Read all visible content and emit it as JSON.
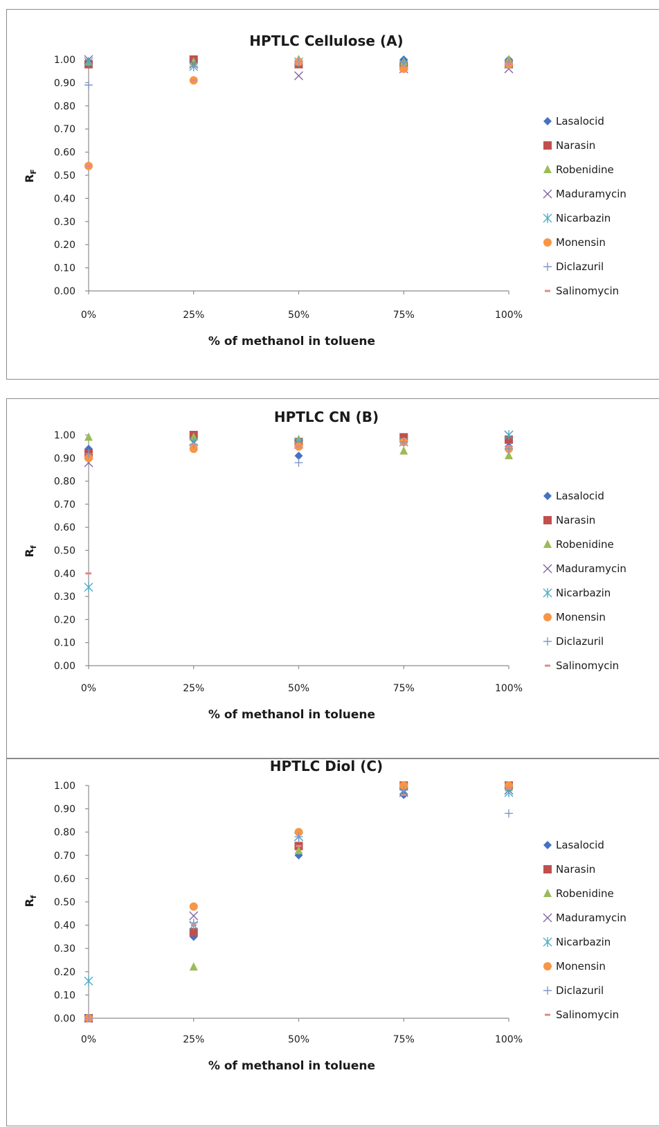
{
  "colors": {
    "Lasalocid": "#4472c4",
    "Narasin": "#c0504d",
    "Robenidine": "#9bbb59",
    "Maduramycin": "#8064a2",
    "Nicarbazin": "#4bacc6",
    "Monensin": "#f79646",
    "Diclazuril": "#7f97c9",
    "Salinomycin": "#e08a88"
  },
  "marker_shapes": {
    "Lasalocid": "diamond",
    "Narasin": "square",
    "Robenidine": "triangle",
    "Maduramycin": "x",
    "Nicarbazin": "asterisk",
    "Monensin": "circle",
    "Diclazuril": "plus",
    "Salinomycin": "dash"
  },
  "chart_data": [
    {
      "type": "scatter",
      "title": "HPTLC Cellulose (A)",
      "xlabel": "% of methanol in toluene",
      "ylabel": "RF",
      "x_tick_labels": [
        "0%",
        "25%",
        "50%",
        "75%",
        "100%"
      ],
      "y_tick_labels": [
        "0.00",
        "0.10",
        "0.20",
        "0.30",
        "0.40",
        "0.50",
        "0.60",
        "0.70",
        "0.80",
        "0.90",
        "1.00"
      ],
      "x": [
        0,
        25,
        50,
        75,
        100
      ],
      "xlim": [
        0,
        100
      ],
      "ylim": [
        0,
        1
      ],
      "legend_position": "right",
      "series": [
        {
          "name": "Lasalocid",
          "values": [
            0.99,
            0.99,
            0.98,
            1.0,
            1.0
          ]
        },
        {
          "name": "Narasin",
          "values": [
            0.98,
            1.0,
            0.98,
            0.97,
            0.98
          ]
        },
        {
          "name": "Robenidine",
          "values": [
            0.99,
            0.99,
            1.0,
            0.99,
            1.0
          ]
        },
        {
          "name": "Maduramycin",
          "values": [
            1.0,
            0.98,
            0.93,
            0.96,
            0.96
          ]
        },
        {
          "name": "Nicarbazin",
          "values": [
            0.99,
            0.97,
            0.99,
            0.98,
            0.98
          ]
        },
        {
          "name": "Monensin",
          "values": [
            0.54,
            0.91,
            0.99,
            0.96,
            0.98
          ]
        },
        {
          "name": "Diclazuril",
          "values": [
            0.89,
            0.97,
            0.99,
            0.99,
            0.99
          ]
        },
        {
          "name": "Salinomycin",
          "values": [
            0.54,
            0.91,
            0.99,
            0.97,
            0.98
          ]
        }
      ]
    },
    {
      "type": "scatter",
      "title": "HPTLC CN (B)",
      "xlabel": "% of methanol in toluene",
      "ylabel": "Rf",
      "x_tick_labels": [
        "0%",
        "25%",
        "50%",
        "75%",
        "100%"
      ],
      "y_tick_labels": [
        "0.00",
        "0.10",
        "0.20",
        "0.30",
        "0.40",
        "0.50",
        "0.60",
        "0.70",
        "0.80",
        "0.90",
        "1.00"
      ],
      "x": [
        0,
        25,
        50,
        75,
        100
      ],
      "xlim": [
        0,
        100
      ],
      "ylim": [
        0,
        1
      ],
      "legend_position": "right",
      "series": [
        {
          "name": "Lasalocid",
          "values": [
            0.94,
            0.98,
            0.91,
            0.97,
            0.95
          ]
        },
        {
          "name": "Narasin",
          "values": [
            0.92,
            1.0,
            0.97,
            0.99,
            0.98
          ]
        },
        {
          "name": "Robenidine",
          "values": [
            0.99,
            0.99,
            0.98,
            0.93,
            0.91
          ]
        },
        {
          "name": "Maduramycin",
          "values": [
            0.88,
            0.97,
            0.96,
            0.97,
            1.0
          ]
        },
        {
          "name": "Nicarbazin",
          "values": [
            0.34,
            0.97,
            0.97,
            0.97,
            1.0
          ]
        },
        {
          "name": "Monensin",
          "values": [
            0.9,
            0.94,
            0.95,
            0.97,
            0.94
          ]
        },
        {
          "name": "Diclazuril",
          "values": [
            0.92,
            0.96,
            0.88,
            0.97,
            0.94
          ]
        },
        {
          "name": "Salinomycin",
          "values": [
            0.4,
            0.96,
            0.95,
            0.96,
            0.95
          ]
        }
      ]
    },
    {
      "type": "scatter",
      "title": "HPTLC Diol (C)",
      "xlabel": "% of methanol in toluene",
      "ylabel": "Rf",
      "x_tick_labels": [
        "0%",
        "25%",
        "50%",
        "75%",
        "100%"
      ],
      "y_tick_labels": [
        "0.00",
        "0.10",
        "0.20",
        "0.30",
        "0.40",
        "0.50",
        "0.60",
        "0.70",
        "0.80",
        "0.90",
        "1.00"
      ],
      "x": [
        0,
        25,
        50,
        75,
        100
      ],
      "xlim": [
        0,
        100
      ],
      "ylim": [
        0,
        1
      ],
      "legend_position": "right",
      "series": [
        {
          "name": "Lasalocid",
          "values": [
            0.0,
            0.35,
            0.7,
            0.96,
            1.0
          ]
        },
        {
          "name": "Narasin",
          "values": [
            0.0,
            0.37,
            0.74,
            1.0,
            1.0
          ]
        },
        {
          "name": "Robenidine",
          "values": [
            0.0,
            0.22,
            0.72,
            1.0,
            0.99
          ]
        },
        {
          "name": "Maduramycin",
          "values": [
            0.0,
            0.44,
            0.78,
            0.97,
            0.98
          ]
        },
        {
          "name": "Nicarbazin",
          "values": [
            0.16,
            0.4,
            0.78,
            0.98,
            0.97
          ]
        },
        {
          "name": "Monensin",
          "values": [
            0.0,
            0.48,
            0.8,
            1.0,
            1.0
          ]
        },
        {
          "name": "Diclazuril",
          "values": [
            0.0,
            0.41,
            0.78,
            0.98,
            0.88
          ]
        },
        {
          "name": "Salinomycin",
          "values": [
            0.0,
            0.4,
            0.74,
            0.96,
            0.99
          ]
        }
      ]
    }
  ]
}
